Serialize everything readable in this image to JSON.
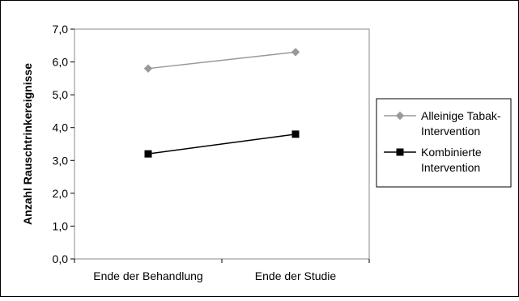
{
  "chart_data": {
    "type": "line",
    "title": "",
    "xlabel": "",
    "ylabel": "Anzahl Rauschtrinkereignisse",
    "categories": [
      "Ende der Behandlung",
      "Ende der Studie"
    ],
    "ylim": [
      0,
      7
    ],
    "yticks": [
      "0,0",
      "1,0",
      "2,0",
      "3,0",
      "4,0",
      "5,0",
      "6,0",
      "7,0"
    ],
    "grid": false,
    "legend_position": "right",
    "series": [
      {
        "name_lines": [
          "Alleinige Tabak-",
          "Intervention"
        ],
        "values": [
          5.8,
          6.3
        ],
        "color": "#999999",
        "marker": "diamond"
      },
      {
        "name_lines": [
          "Kombinierte",
          "Intervention"
        ],
        "values": [
          3.2,
          3.8
        ],
        "color": "#000000",
        "marker": "square"
      }
    ]
  }
}
